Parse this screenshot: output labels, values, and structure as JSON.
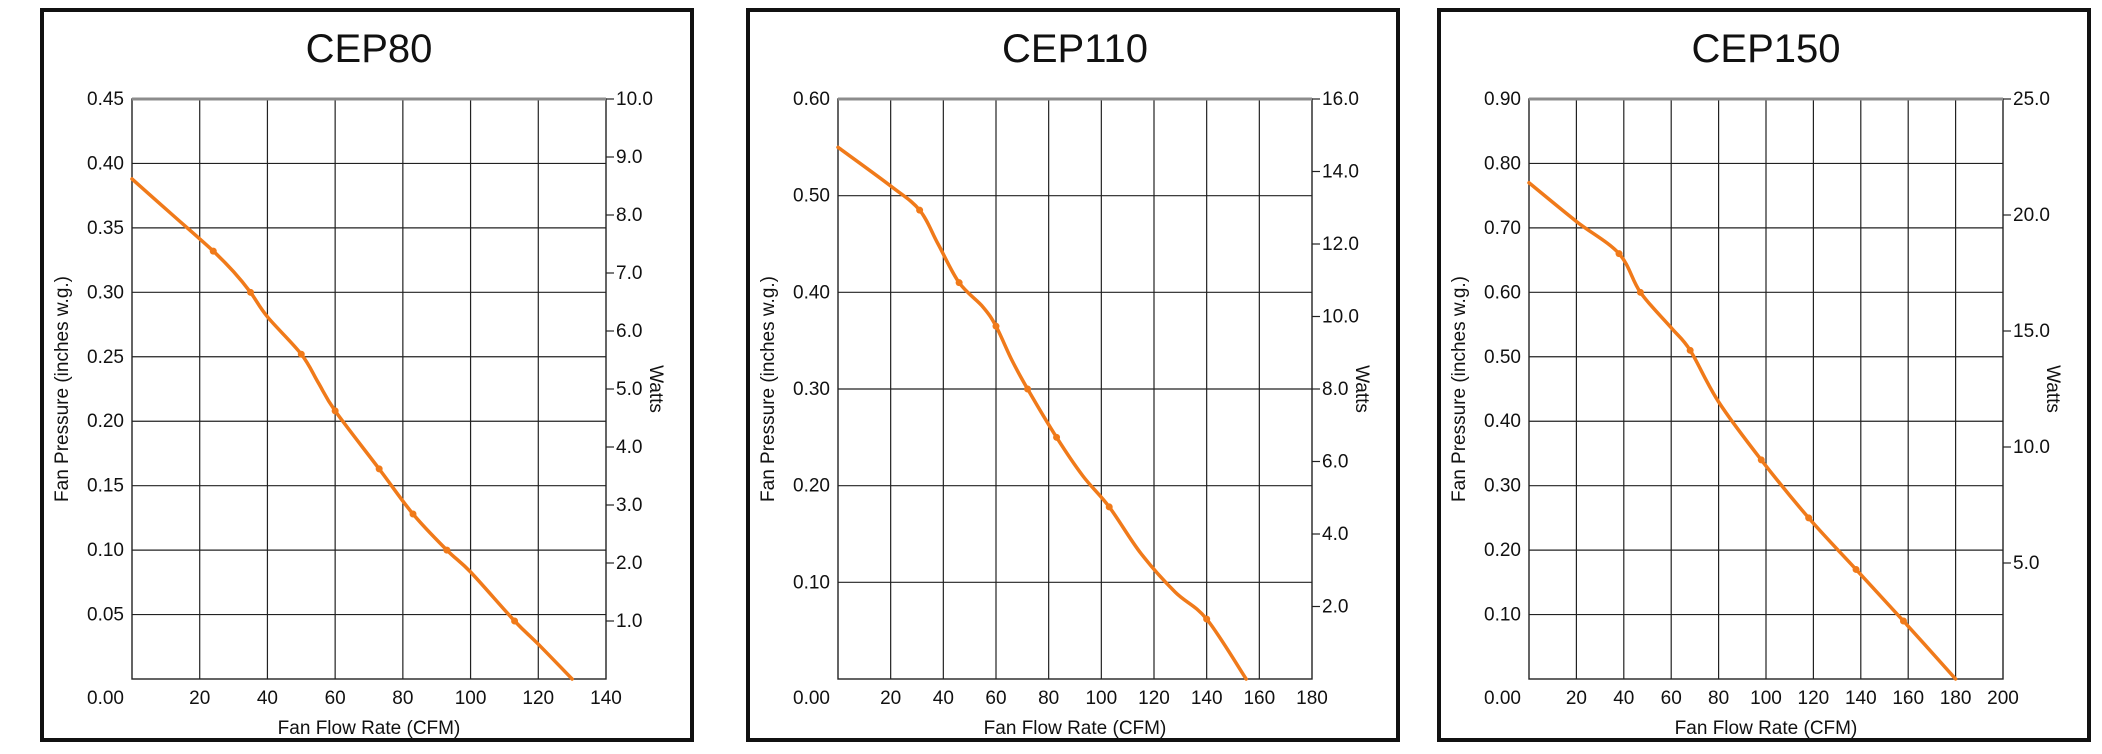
{
  "colors": {
    "curve": "#f07a1a",
    "grid": "#222222",
    "frame": "#111111"
  },
  "chart_data": [
    {
      "type": "line",
      "title": "CEP80",
      "xlabel": "Fan Flow Rate (CFM)",
      "ylabel": "Fan Pressure (inches w.g.)",
      "y2label": "Watts",
      "xlim": [
        0,
        140
      ],
      "ylim": [
        0,
        0.45
      ],
      "y2lim": [
        0,
        10
      ],
      "grid": true,
      "x_ticks": [
        "20",
        "40",
        "60",
        "80",
        "100",
        "120",
        "140"
      ],
      "y_ticks": [
        "0.00",
        "0.05",
        "0.10",
        "0.15",
        "0.20",
        "0.25",
        "0.30",
        "0.35",
        "0.40",
        "0.45"
      ],
      "y2_ticks": [
        "1.0",
        "2.0",
        "3.0",
        "4.0",
        "5.0",
        "6.0",
        "7.0",
        "8.0",
        "9.0",
        "10.0"
      ],
      "series": [
        {
          "x": [
            0,
            12,
            24,
            30,
            35,
            40,
            50,
            55,
            60,
            73,
            83,
            93,
            100,
            113,
            120,
            130
          ],
          "y": [
            0.388,
            0.36,
            0.332,
            0.316,
            0.3,
            0.281,
            0.252,
            0.23,
            0.208,
            0.163,
            0.128,
            0.1,
            0.083,
            0.045,
            0.027,
            0.0
          ],
          "markers_at": [
            24,
            35,
            50,
            60,
            73,
            83,
            93,
            113
          ]
        }
      ]
    },
    {
      "type": "line",
      "title": "CEP110",
      "xlabel": "Fan Flow Rate (CFM)",
      "ylabel": "Fan Pressure (inches w.g.)",
      "y2label": "Watts",
      "xlim": [
        0,
        180
      ],
      "ylim": [
        0,
        0.6
      ],
      "y2lim": [
        0,
        16
      ],
      "grid": true,
      "x_ticks": [
        "20",
        "40",
        "60",
        "80",
        "100",
        "120",
        "140",
        "160",
        "180"
      ],
      "y_ticks": [
        "0.00",
        "0.10",
        "0.20",
        "0.30",
        "0.40",
        "0.50",
        "0.60"
      ],
      "y2_ticks": [
        "2.0",
        "4.0",
        "6.0",
        "8.0",
        "10.0",
        "12.0",
        "14.0",
        "16.0"
      ],
      "series": [
        {
          "x": [
            0,
            20,
            31,
            38,
            46,
            55,
            60,
            66,
            72,
            83,
            93,
            103,
            115,
            128,
            140,
            155
          ],
          "y": [
            0.55,
            0.51,
            0.485,
            0.45,
            0.41,
            0.385,
            0.365,
            0.33,
            0.3,
            0.25,
            0.21,
            0.178,
            0.13,
            0.09,
            0.062,
            0.0
          ],
          "markers_at": [
            31,
            46,
            60,
            72,
            83,
            103,
            140
          ]
        }
      ]
    },
    {
      "type": "line",
      "title": "CEP150",
      "xlabel": "Fan Flow Rate (CFM)",
      "ylabel": "Fan Pressure (inches w.g.)",
      "y2label": "Watts",
      "xlim": [
        0,
        200
      ],
      "ylim": [
        0,
        0.9
      ],
      "y2lim": [
        0,
        25
      ],
      "grid": true,
      "x_ticks": [
        "20",
        "40",
        "60",
        "80",
        "100",
        "120",
        "140",
        "160",
        "180",
        "200"
      ],
      "y_ticks": [
        "0.00",
        "0.10",
        "0.20",
        "0.30",
        "0.40",
        "0.50",
        "0.60",
        "0.70",
        "0.80",
        "0.90"
      ],
      "y2_ticks": [
        "5.0",
        "10.0",
        "15.0",
        "20.0",
        "25.0"
      ],
      "series": [
        {
          "x": [
            0,
            20,
            38,
            47,
            60,
            68,
            80,
            98,
            118,
            138,
            158,
            180
          ],
          "y": [
            0.77,
            0.71,
            0.66,
            0.6,
            0.545,
            0.51,
            0.43,
            0.34,
            0.25,
            0.17,
            0.09,
            0.0
          ],
          "markers_at": [
            38,
            47,
            68,
            98,
            118,
            138,
            158
          ]
        }
      ]
    }
  ]
}
